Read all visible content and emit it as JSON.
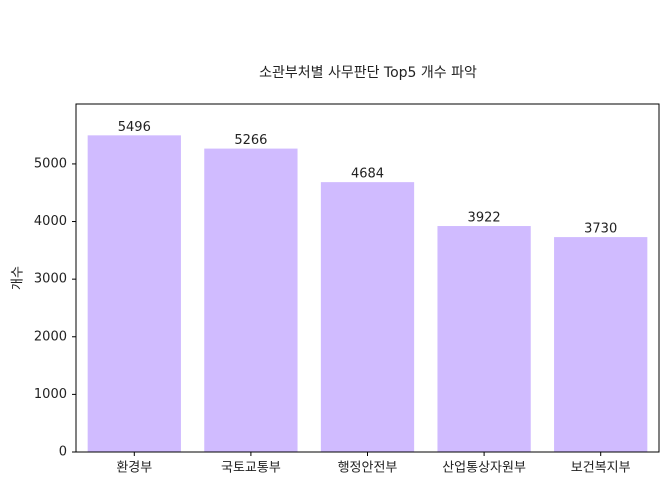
{
  "chart_data": {
    "type": "bar",
    "title": "소관부처별 사무판단 Top5 개수 파악",
    "y_label": "개수",
    "categories": [
      "환경부",
      "국토교통부",
      "행정안전부",
      "산업통상자원부",
      "보건복지부"
    ],
    "values": [
      5496,
      5266,
      4684,
      3922,
      3730
    ],
    "color": "#d0bbff",
    "ylim": [
      0,
      6040
    ],
    "yticks": [
      0,
      1000,
      2000,
      3000,
      4000,
      5000
    ],
    "grid": false
  }
}
